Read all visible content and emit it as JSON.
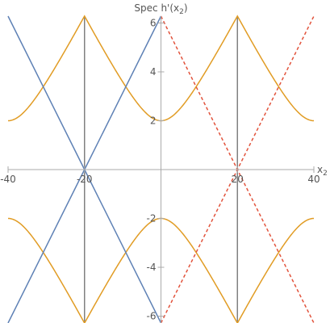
{
  "chart_data": {
    "type": "line",
    "title": "",
    "xlabel": "x",
    "xlabel_sub": "2",
    "ylabel": "Spec h'(x",
    "ylabel_sub": "2",
    "ylabel_close": ")",
    "xlim": [
      -40,
      40
    ],
    "ylim": [
      -6.28,
      6.28
    ],
    "x_ticks": [
      -40,
      -20,
      0,
      20,
      40
    ],
    "x_tick_labels": [
      "-40",
      "-20",
      "",
      "20",
      "40"
    ],
    "y_ticks": [
      -6,
      -4,
      -2,
      2,
      4,
      6
    ],
    "y_tick_labels": [
      "-6",
      "-4",
      "-2",
      "2",
      "4",
      "6"
    ],
    "grid": false,
    "legend": "none",
    "series": [
      {
        "color": "#E19C24",
        "style": "solid",
        "formula": "±sqrt(4 + (2π(|x−20|−10)/10)²) periodic with period 40, centred at x=0 and x=40 minima ±2, maxima ±2π at x=−20 and x=20",
        "x": [
          -40,
          -35,
          -30,
          -25,
          -20,
          -15,
          -10,
          -5,
          0,
          5,
          10,
          15,
          20,
          25,
          30,
          35,
          40
        ],
        "values_upper": [
          2.0,
          2.45,
          3.72,
          5.14,
          6.28,
          5.14,
          3.72,
          2.45,
          2.0,
          2.45,
          3.72,
          5.14,
          6.28,
          5.14,
          3.72,
          2.45,
          2.0
        ],
        "values_lower": [
          -2.0,
          -2.45,
          -3.72,
          -5.14,
          -6.28,
          -5.14,
          -3.72,
          -2.45,
          -2.0,
          -2.45,
          -3.72,
          -5.14,
          -6.28,
          -5.14,
          -3.72,
          -2.45,
          -2.0
        ]
      },
      {
        "color": "#5E81B5",
        "style": "solid",
        "description": "lines ±(x+20)·π/10 crossing at (−20, 0)",
        "x": [
          -40,
          -20,
          0
        ],
        "values_a": [
          6.28,
          0,
          -6.28
        ],
        "values_b": [
          -6.28,
          0,
          6.28
        ]
      },
      {
        "color": "#E2533C",
        "style": "dashed",
        "description": "lines ±(x−20)·π/10 crossing at (20, 0)",
        "x": [
          0,
          20,
          40
        ],
        "values_a": [
          6.28,
          0,
          -6.28
        ],
        "values_b": [
          -6.28,
          0,
          6.28
        ]
      },
      {
        "color": "#808080",
        "style": "solid",
        "description": "vertical segments at x=−20 and x=20 from y=−2π to 2π",
        "x": [
          -20,
          20
        ],
        "ymin": -6.28,
        "ymax": 6.28
      }
    ]
  }
}
